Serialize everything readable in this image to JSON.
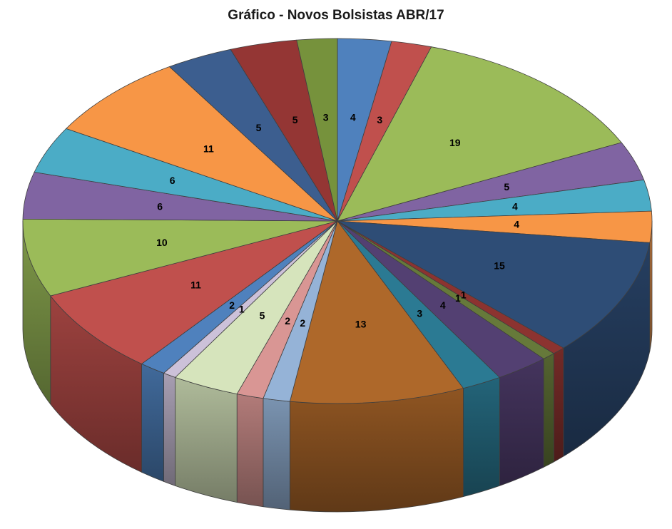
{
  "title": "Gráfico - Novos Bolsistas ABR/17",
  "background": "#FFFFFF",
  "chart_data": {
    "type": "pie",
    "style": "3d-exploded-none",
    "title": "Gráfico - Novos Bolsistas ABR/17",
    "start_angle": "top",
    "direction": "clockwise",
    "legend_position": "none",
    "labels_shown": "values",
    "total": 145,
    "slices": [
      {
        "value": 4,
        "color": "#4F81BD"
      },
      {
        "value": 3,
        "color": "#C0504D"
      },
      {
        "value": 19,
        "color": "#9BBB59"
      },
      {
        "value": 5,
        "color": "#8064A2"
      },
      {
        "value": 4,
        "color": "#4BACC6"
      },
      {
        "value": 4,
        "color": "#F79646"
      },
      {
        "value": 15,
        "color": "#2E4D76"
      },
      {
        "value": 1,
        "color": "#8C3330"
      },
      {
        "value": 1,
        "color": "#66793A"
      },
      {
        "value": 4,
        "color": "#534072"
      },
      {
        "value": 3,
        "color": "#2B7A93"
      },
      {
        "value": 13,
        "color": "#AE682A"
      },
      {
        "value": 2,
        "color": "#95B3D7"
      },
      {
        "value": 2,
        "color": "#D99694"
      },
      {
        "value": 5,
        "color": "#D6E4BC"
      },
      {
        "value": 1,
        "color": "#CCC1D9"
      },
      {
        "value": 2,
        "color": "#4F81BD"
      },
      {
        "value": 11,
        "color": "#C0504D"
      },
      {
        "value": 10,
        "color": "#9BBB59"
      },
      {
        "value": 6,
        "color": "#8064A2"
      },
      {
        "value": 6,
        "color": "#4BACC6"
      },
      {
        "value": 11,
        "color": "#F79646"
      },
      {
        "value": 5,
        "color": "#3C5E8F"
      },
      {
        "value": 5,
        "color": "#943634"
      },
      {
        "value": 3,
        "color": "#76923C"
      }
    ]
  }
}
